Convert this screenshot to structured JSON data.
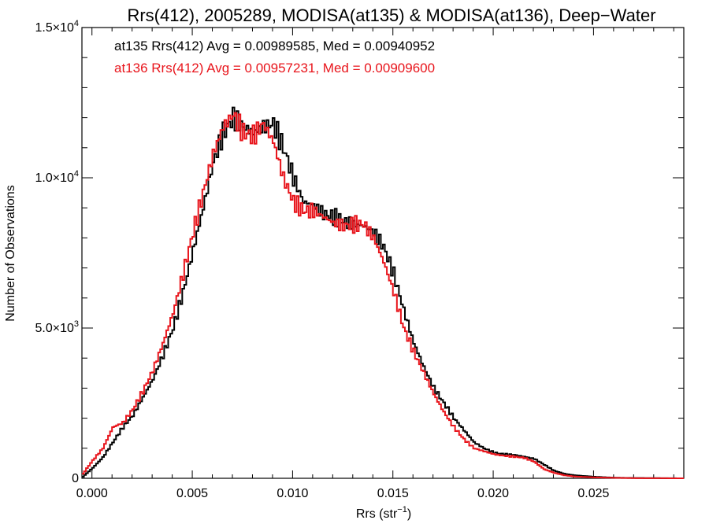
{
  "chart_data": {
    "type": "line",
    "title": "Rrs(412), 2005289, MODISA(at135) & MODISA(at136), Deep−Water",
    "xlabel": "Rrs (str",
    "xlabel_sup": "−1",
    "xlabel_end": ")",
    "ylabel": "Number of Observations",
    "xlim": [
      -0.0005,
      0.0295
    ],
    "ylim": [
      0,
      15000
    ],
    "xticks": [
      0.0,
      0.005,
      0.01,
      0.015,
      0.02,
      0.025
    ],
    "xtick_labels": [
      "0.000",
      "0.005",
      "0.010",
      "0.015",
      "0.020",
      "0.025"
    ],
    "yticks": [
      0,
      5000,
      10000,
      15000
    ],
    "ytick_labels": [
      {
        "base": "0",
        "exp": ""
      },
      {
        "base": "5.0×10",
        "exp": "3"
      },
      {
        "base": "1.0×10",
        "exp": "4"
      },
      {
        "base": "1.5×10",
        "exp": "4"
      }
    ],
    "grid": false,
    "annotations": [
      {
        "text": "at135 Rrs(412) Avg = 0.00989585, Med = 0.00940952",
        "color": "#000000"
      },
      {
        "text": "at136 Rrs(412) Avg = 0.00957231, Med = 0.00909600",
        "color": "#e8141b"
      }
    ],
    "series": [
      {
        "color": "#000000",
        "points": [
          [
            -0.0005,
            50
          ],
          [
            0.0,
            350
          ],
          [
            0.0005,
            700
          ],
          [
            0.001,
            1200
          ],
          [
            0.0015,
            1700
          ],
          [
            0.002,
            2100
          ],
          [
            0.0025,
            2700
          ],
          [
            0.003,
            3300
          ],
          [
            0.0035,
            4100
          ],
          [
            0.004,
            5000
          ],
          [
            0.0045,
            6200
          ],
          [
            0.005,
            7600
          ],
          [
            0.0055,
            9000
          ],
          [
            0.006,
            10500
          ],
          [
            0.0065,
            11500
          ],
          [
            0.007,
            12000
          ],
          [
            0.0075,
            11700
          ],
          [
            0.008,
            11500
          ],
          [
            0.0085,
            11700
          ],
          [
            0.009,
            11800
          ],
          [
            0.0095,
            11000
          ],
          [
            0.01,
            10000
          ],
          [
            0.0105,
            9200
          ],
          [
            0.011,
            9100
          ],
          [
            0.0115,
            8800
          ],
          [
            0.012,
            8700
          ],
          [
            0.0125,
            8550
          ],
          [
            0.013,
            8450
          ],
          [
            0.0135,
            8400
          ],
          [
            0.014,
            8200
          ],
          [
            0.0145,
            7700
          ],
          [
            0.015,
            6800
          ],
          [
            0.0155,
            5600
          ],
          [
            0.016,
            4500
          ],
          [
            0.0165,
            3700
          ],
          [
            0.017,
            3000
          ],
          [
            0.0175,
            2500
          ],
          [
            0.018,
            2000
          ],
          [
            0.0185,
            1600
          ],
          [
            0.019,
            1200
          ],
          [
            0.0195,
            1000
          ],
          [
            0.02,
            850
          ],
          [
            0.0205,
            800
          ],
          [
            0.021,
            780
          ],
          [
            0.0215,
            720
          ],
          [
            0.022,
            650
          ],
          [
            0.0225,
            450
          ],
          [
            0.023,
            250
          ],
          [
            0.0235,
            150
          ],
          [
            0.024,
            100
          ],
          [
            0.025,
            50
          ],
          [
            0.026,
            20
          ],
          [
            0.027,
            10
          ],
          [
            0.0295,
            0
          ]
        ]
      },
      {
        "color": "#e8141b",
        "points": [
          [
            -0.0005,
            150
          ],
          [
            0.0,
            600
          ],
          [
            0.0005,
            1000
          ],
          [
            0.001,
            1700
          ],
          [
            0.0015,
            1850
          ],
          [
            0.002,
            2300
          ],
          [
            0.0025,
            2900
          ],
          [
            0.003,
            3600
          ],
          [
            0.0035,
            4500
          ],
          [
            0.004,
            5500
          ],
          [
            0.0045,
            6800
          ],
          [
            0.005,
            8200
          ],
          [
            0.0055,
            9500
          ],
          [
            0.006,
            10800
          ],
          [
            0.0065,
            11700
          ],
          [
            0.007,
            12100
          ],
          [
            0.0075,
            11500
          ],
          [
            0.008,
            11400
          ],
          [
            0.0085,
            11800
          ],
          [
            0.009,
            11200
          ],
          [
            0.0095,
            10000
          ],
          [
            0.01,
            9200
          ],
          [
            0.0105,
            8900
          ],
          [
            0.011,
            8900
          ],
          [
            0.0115,
            8700
          ],
          [
            0.012,
            8500
          ],
          [
            0.0125,
            8400
          ],
          [
            0.013,
            8450
          ],
          [
            0.0135,
            8450
          ],
          [
            0.014,
            8000
          ],
          [
            0.0145,
            7200
          ],
          [
            0.015,
            6200
          ],
          [
            0.0155,
            5000
          ],
          [
            0.016,
            4200
          ],
          [
            0.0165,
            3500
          ],
          [
            0.017,
            2800
          ],
          [
            0.0175,
            2200
          ],
          [
            0.018,
            1700
          ],
          [
            0.0185,
            1300
          ],
          [
            0.019,
            1000
          ],
          [
            0.0195,
            900
          ],
          [
            0.02,
            800
          ],
          [
            0.0205,
            750
          ],
          [
            0.021,
            720
          ],
          [
            0.0215,
            680
          ],
          [
            0.022,
            550
          ],
          [
            0.0225,
            300
          ],
          [
            0.023,
            180
          ],
          [
            0.0235,
            100
          ],
          [
            0.024,
            60
          ],
          [
            0.025,
            30
          ],
          [
            0.026,
            15
          ],
          [
            0.027,
            5
          ],
          [
            0.0295,
            0
          ]
        ]
      }
    ]
  }
}
